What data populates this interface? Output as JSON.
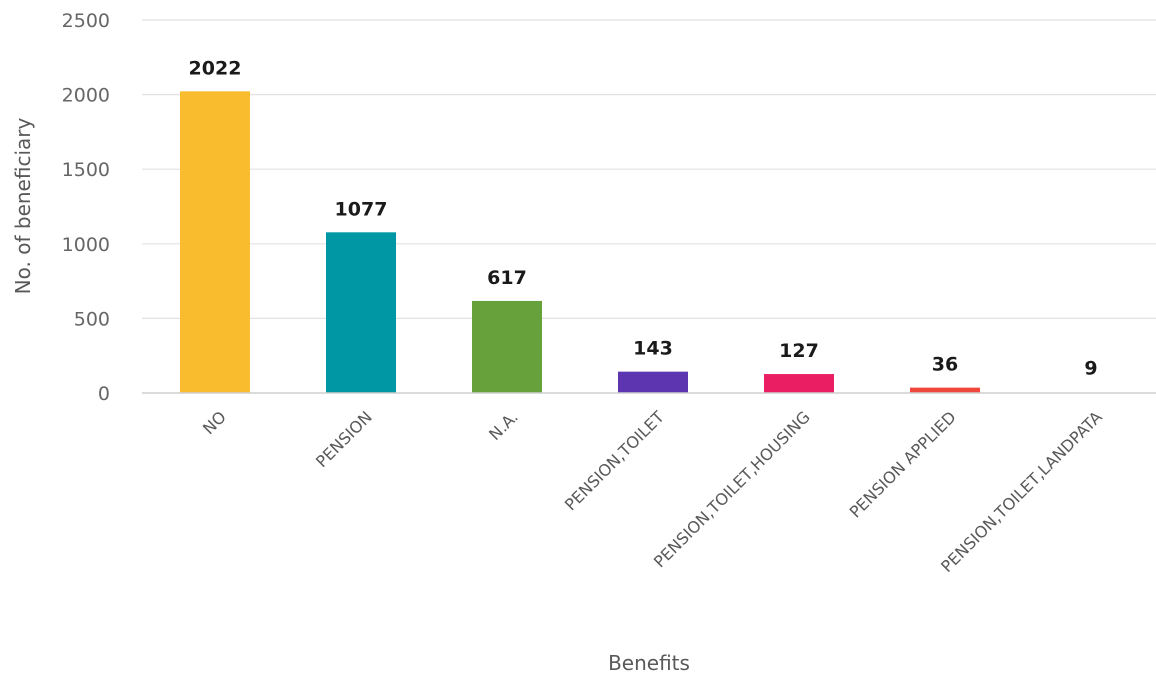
{
  "chart_data": {
    "type": "bar",
    "categories": [
      "NO",
      "PENSION",
      "N.A.",
      "PENSION,TOILET",
      "PENSION,TOILET,HOUSING",
      "PENSION APPLIED",
      "PENSION,TOILET,LANDPATA"
    ],
    "values": [
      2022,
      1077,
      617,
      143,
      127,
      36,
      9
    ],
    "colors": [
      "#F8BC2E",
      "#0097A4",
      "#67A13B",
      "#5E35B0",
      "#E91E63",
      "#F0473C",
      "#FFFFFF"
    ],
    "xlabel": "Benefits",
    "ylabel": "No. of beneficiary",
    "ylim": [
      0,
      2500
    ],
    "yticks": [
      0,
      500,
      1000,
      1500,
      2000,
      2500
    ],
    "grid": true,
    "data_labels": true
  }
}
